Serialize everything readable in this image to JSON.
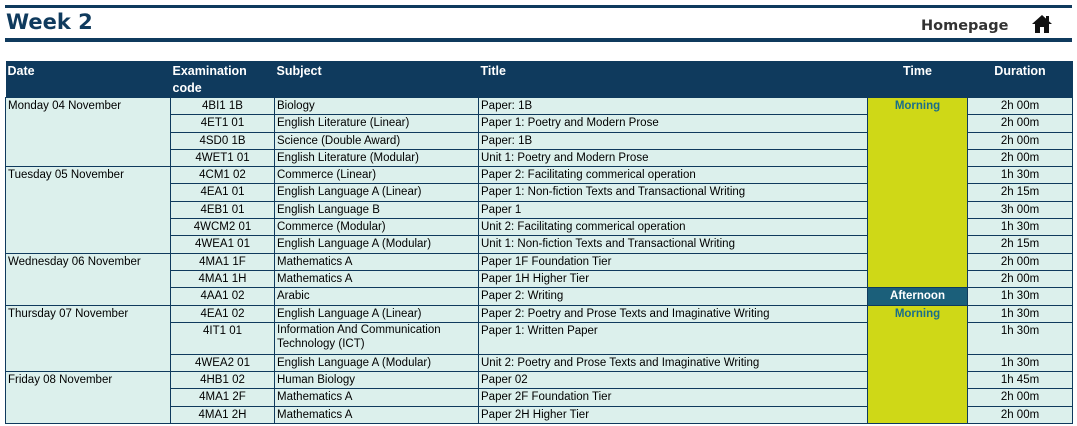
{
  "header": {
    "title": "Week 2",
    "homepage_label": "Homepage",
    "home_icon": "home-icon"
  },
  "table": {
    "columns": {
      "date": "Date",
      "code": "Examination code",
      "subject": "Subject",
      "title": "Title",
      "time": "Time",
      "duration": "Duration"
    },
    "days": [
      {
        "date": "Monday 04 November",
        "rows": [
          {
            "code": "4BI1 1B",
            "subject": "Biology",
            "title": "Paper: 1B",
            "time": "Morning",
            "duration": "2h 00m"
          },
          {
            "code": "4ET1 01",
            "subject": "English Literature (Linear)",
            "title": "Paper 1: Poetry and Modern Prose",
            "time": "",
            "duration": "2h 00m"
          },
          {
            "code": "4SD0 1B",
            "subject": "Science (Double Award)",
            "title": "Paper: 1B",
            "time": "",
            "duration": "2h 00m"
          },
          {
            "code": "4WET1 01",
            "subject": "English Literature (Modular)",
            "title": "Unit 1: Poetry and Modern Prose",
            "time": "",
            "duration": "2h 00m"
          }
        ]
      },
      {
        "date": "Tuesday 05 November",
        "rows": [
          {
            "code": "4CM1 02",
            "subject": "Commerce (Linear)",
            "title": "Paper 2: Facilitating commerical operation",
            "time": "",
            "duration": "1h 30m"
          },
          {
            "code": "4EA1 01",
            "subject": "English Language A (Linear)",
            "title": "Paper 1: Non-fiction Texts and Transactional Writing",
            "time": "",
            "duration": "2h 15m"
          },
          {
            "code": "4EB1 01",
            "subject": "English Language B",
            "title": "Paper 1",
            "time": "",
            "duration": "3h 00m"
          },
          {
            "code": "4WCM2 01",
            "subject": "Commerce (Modular)",
            "title": "Unit 2: Facilitating commerical operation",
            "time": "",
            "duration": "1h 30m"
          },
          {
            "code": "4WEA1 01",
            "subject": "English Language A (Modular)",
            "title": "Unit 1: Non-fiction Texts and Transactional Writing",
            "time": "",
            "duration": "2h 15m"
          }
        ]
      },
      {
        "date": "Wednesday 06 November",
        "rows": [
          {
            "code": "4MA1 1F",
            "subject": "Mathematics A",
            "title": "Paper 1F Foundation Tier",
            "time": "",
            "duration": "2h 00m"
          },
          {
            "code": "4MA1 1H",
            "subject": "Mathematics A",
            "title": "Paper 1H Higher Tier",
            "time": "",
            "duration": "2h 00m"
          },
          {
            "code": "4AA1 02",
            "subject": "Arabic",
            "title": "Paper 2: Writing",
            "time": "Afternoon",
            "duration": "1h 30m"
          }
        ]
      },
      {
        "date": "Thursday 07 November",
        "rows": [
          {
            "code": "4EA1 02",
            "subject": "English Language A (Linear)",
            "title": "Paper 2: Poetry and Prose Texts and Imaginative Writing",
            "time": "Morning",
            "duration": "1h 30m"
          },
          {
            "code": "4IT1 01",
            "subject": "Information And Communication Technology (ICT)",
            "title": "Paper 1: Written Paper",
            "time": "",
            "duration": "1h 30m"
          },
          {
            "code": "4WEA2 01",
            "subject": "English Language A (Modular)",
            "title": "Unit 2: Poetry and Prose Texts and Imaginative Writing",
            "time": "",
            "duration": "1h 30m"
          }
        ]
      },
      {
        "date": "Friday 08 November",
        "rows": [
          {
            "code": "4HB1 02",
            "subject": "Human Biology",
            "title": "Paper 02",
            "time": "",
            "duration": "1h 45m"
          },
          {
            "code": "4MA1 2F",
            "subject": "Mathematics A",
            "title": "Paper 2F Foundation Tier",
            "time": "",
            "duration": "2h 00m"
          },
          {
            "code": "4MA1 2H",
            "subject": "Mathematics A",
            "title": "Paper 2H Higher Tier",
            "time": "",
            "duration": "2h 00m"
          }
        ]
      }
    ]
  },
  "colors": {
    "navy": "#0f3a5d",
    "row_fill": "#dcf0ec",
    "morning_fill": "#cfd817",
    "afternoon_fill": "#1b5f7a"
  }
}
